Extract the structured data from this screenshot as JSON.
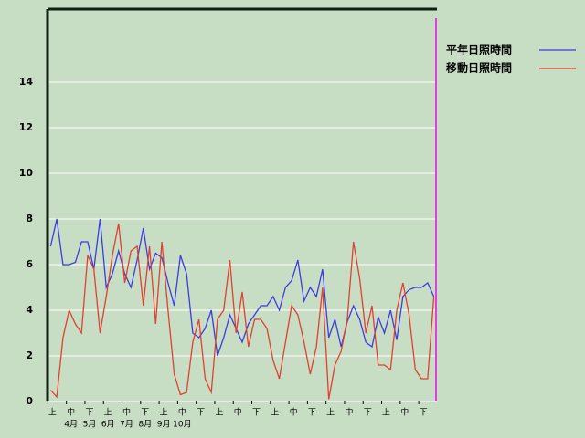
{
  "chart_data": {
    "type": "line",
    "categories": [
      "上",
      null,
      null,
      "中",
      null,
      null,
      "下",
      null,
      null,
      "上",
      null,
      null,
      "中",
      null,
      null,
      "下",
      null,
      null,
      "上",
      null,
      null,
      "中",
      null,
      null,
      "下",
      null,
      null,
      "上",
      null,
      null,
      "中",
      null,
      null,
      "下",
      null,
      null,
      "上",
      null,
      null,
      "中",
      null,
      null,
      "下",
      null,
      null,
      "上",
      null,
      null,
      "中",
      null,
      null,
      "下",
      null,
      null,
      "上",
      null,
      null,
      "中",
      null,
      null,
      "下",
      null,
      null
    ],
    "month_labels": [
      "4月",
      "5月",
      "6月",
      "7月",
      "8月",
      "9月",
      "10月"
    ],
    "series": [
      {
        "name": "平年日照時間",
        "color": "#3c3ce0",
        "values": [
          6.8,
          8.0,
          6.0,
          6.0,
          6.1,
          7.0,
          7.0,
          5.8,
          8.0,
          5.0,
          5.6,
          6.6,
          5.6,
          5.0,
          6.2,
          7.6,
          5.8,
          6.5,
          6.3,
          5.2,
          4.2,
          6.4,
          5.6,
          3.0,
          2.8,
          3.2,
          4.0,
          2.0,
          2.8,
          3.8,
          3.2,
          2.6,
          3.4,
          3.8,
          4.2,
          4.2,
          4.6,
          4.0,
          5.0,
          5.3,
          6.2,
          4.4,
          5.0,
          4.6,
          5.8,
          2.8,
          3.6,
          2.4,
          3.5,
          4.2,
          3.6,
          2.6,
          2.4,
          3.7,
          3.0,
          4.0,
          2.7,
          4.6,
          4.9,
          5.0,
          5.0,
          5.2,
          4.6
        ]
      },
      {
        "name": "移動日照時間",
        "color": "#e04030",
        "values": [
          0.5,
          0.2,
          2.8,
          4.0,
          3.4,
          3.0,
          6.4,
          5.8,
          3.0,
          4.6,
          6.4,
          7.8,
          5.2,
          6.6,
          6.8,
          4.2,
          6.8,
          3.4,
          7.0,
          4.0,
          1.2,
          0.3,
          0.4,
          2.6,
          3.6,
          1.0,
          0.4,
          3.6,
          4.0,
          6.2,
          3.0,
          4.8,
          2.4,
          3.6,
          3.6,
          3.2,
          1.8,
          1.0,
          2.6,
          4.2,
          3.8,
          2.6,
          1.2,
          2.4,
          5.0,
          0.1,
          1.6,
          2.2,
          3.6,
          7.0,
          5.4,
          3.0,
          4.2,
          1.6,
          1.6,
          1.4,
          4.0,
          5.2,
          3.8,
          1.4,
          1.0,
          1.0,
          4.6
        ]
      }
    ],
    "ylim": [
      0,
      17.2
    ],
    "yticks": [
      0,
      2,
      4,
      6,
      8,
      10,
      12,
      14
    ],
    "grid": true
  }
}
